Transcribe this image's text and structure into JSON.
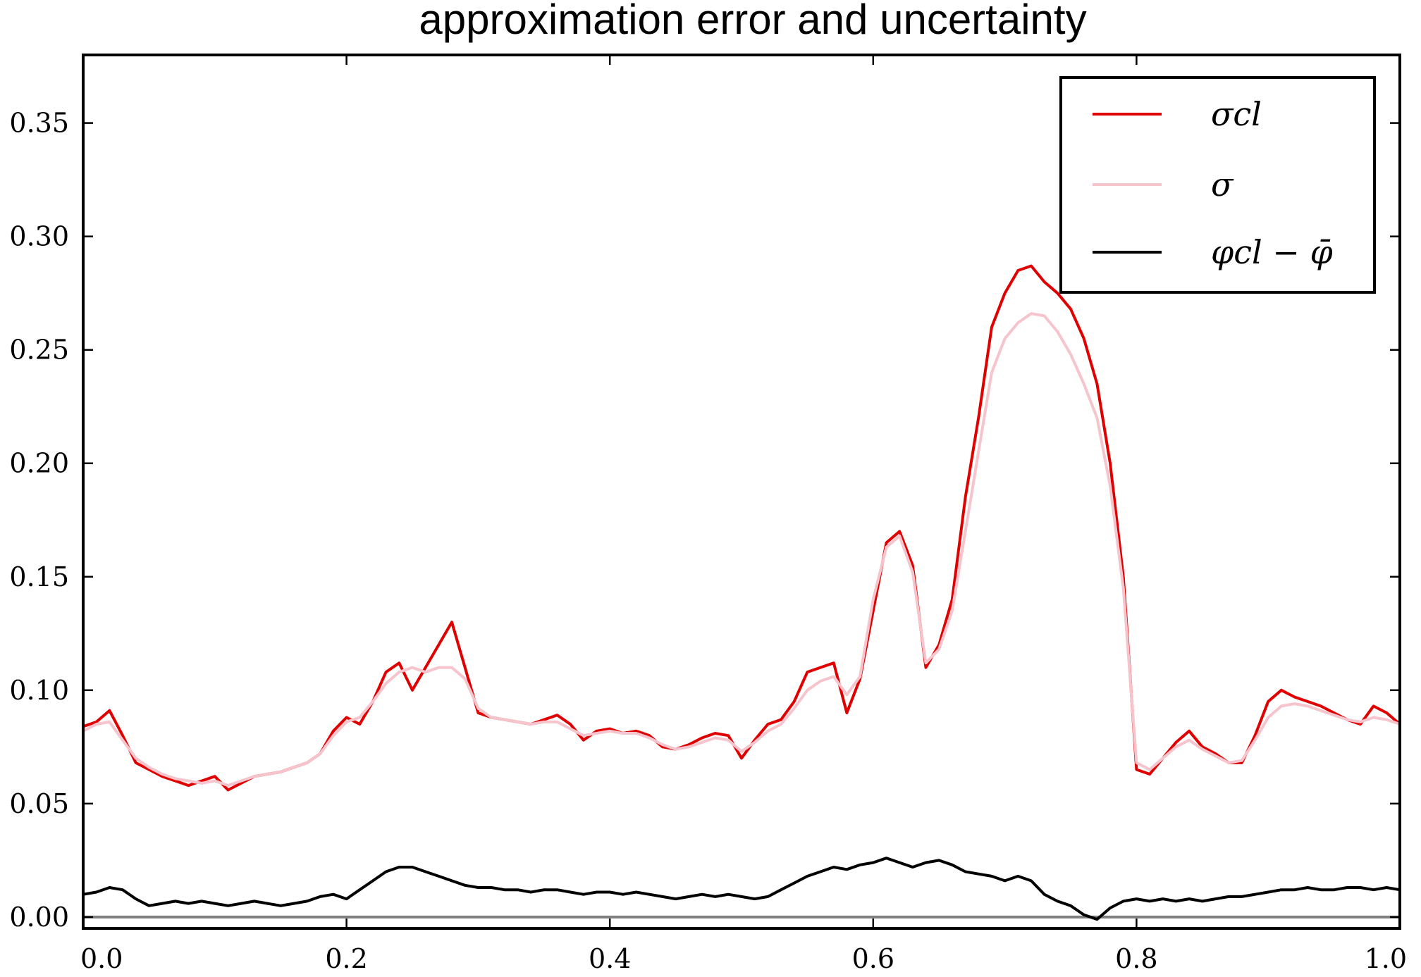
{
  "chart_data": {
    "type": "line",
    "title": "approximation error and uncertainty",
    "xlabel": "",
    "ylabel": "",
    "xlim": [
      0.0,
      1.0
    ],
    "ylim": [
      -0.005,
      0.38
    ],
    "x_ticks": [
      0.0,
      0.2,
      0.4,
      0.6,
      0.8,
      1.0
    ],
    "x_tick_labels": [
      "0.0",
      "0.2",
      "0.4",
      "0.6",
      "0.8",
      "1.0"
    ],
    "y_ticks": [
      0.0,
      0.05,
      0.1,
      0.15,
      0.2,
      0.25,
      0.3,
      0.35
    ],
    "y_tick_labels": [
      "0.00",
      "0.05",
      "0.10",
      "0.15",
      "0.20",
      "0.25",
      "0.30",
      "0.35"
    ],
    "grid": false,
    "legend_position": "top-right",
    "reference_line": {
      "y": 0.0,
      "color": "#808080"
    },
    "series": [
      {
        "name": "σcl",
        "color": "#e00000",
        "x": [
          0.0,
          0.01,
          0.02,
          0.03,
          0.04,
          0.05,
          0.06,
          0.07,
          0.08,
          0.09,
          0.1,
          0.11,
          0.12,
          0.13,
          0.14,
          0.15,
          0.16,
          0.17,
          0.18,
          0.19,
          0.2,
          0.21,
          0.22,
          0.23,
          0.24,
          0.25,
          0.26,
          0.27,
          0.28,
          0.29,
          0.3,
          0.31,
          0.32,
          0.33,
          0.34,
          0.35,
          0.36,
          0.37,
          0.38,
          0.39,
          0.4,
          0.41,
          0.42,
          0.43,
          0.44,
          0.45,
          0.46,
          0.47,
          0.48,
          0.49,
          0.5,
          0.51,
          0.52,
          0.53,
          0.54,
          0.55,
          0.56,
          0.57,
          0.58,
          0.59,
          0.6,
          0.61,
          0.62,
          0.63,
          0.64,
          0.65,
          0.66,
          0.67,
          0.68,
          0.69,
          0.7,
          0.71,
          0.72,
          0.73,
          0.74,
          0.75,
          0.76,
          0.77,
          0.78,
          0.79,
          0.8,
          0.81,
          0.82,
          0.83,
          0.84,
          0.85,
          0.86,
          0.87,
          0.88,
          0.89,
          0.9,
          0.91,
          0.92,
          0.93,
          0.94,
          0.95,
          0.96,
          0.97,
          0.98,
          0.99,
          1.0
        ],
        "y": [
          0.084,
          0.086,
          0.091,
          0.08,
          0.068,
          0.065,
          0.062,
          0.06,
          0.058,
          0.06,
          0.062,
          0.056,
          0.059,
          0.062,
          0.063,
          0.064,
          0.066,
          0.068,
          0.072,
          0.082,
          0.088,
          0.085,
          0.095,
          0.108,
          0.112,
          0.1,
          0.11,
          0.12,
          0.13,
          0.11,
          0.09,
          0.088,
          0.087,
          0.086,
          0.085,
          0.087,
          0.089,
          0.085,
          0.078,
          0.082,
          0.083,
          0.081,
          0.082,
          0.08,
          0.075,
          0.074,
          0.076,
          0.079,
          0.081,
          0.08,
          0.07,
          0.078,
          0.085,
          0.087,
          0.095,
          0.108,
          0.11,
          0.112,
          0.09,
          0.105,
          0.135,
          0.165,
          0.17,
          0.155,
          0.11,
          0.12,
          0.14,
          0.185,
          0.22,
          0.26,
          0.275,
          0.285,
          0.287,
          0.28,
          0.275,
          0.268,
          0.255,
          0.235,
          0.2,
          0.15,
          0.065,
          0.063,
          0.07,
          0.077,
          0.082,
          0.075,
          0.072,
          0.068,
          0.068,
          0.08,
          0.095,
          0.1,
          0.097,
          0.095,
          0.093,
          0.09,
          0.087,
          0.085,
          0.093,
          0.09,
          0.085
        ]
      },
      {
        "name": "σ",
        "color": "#f6c4cc",
        "x": [
          0.0,
          0.01,
          0.02,
          0.03,
          0.04,
          0.05,
          0.06,
          0.07,
          0.08,
          0.09,
          0.1,
          0.11,
          0.12,
          0.13,
          0.14,
          0.15,
          0.16,
          0.17,
          0.18,
          0.19,
          0.2,
          0.21,
          0.22,
          0.23,
          0.24,
          0.25,
          0.26,
          0.27,
          0.28,
          0.29,
          0.3,
          0.31,
          0.32,
          0.33,
          0.34,
          0.35,
          0.36,
          0.37,
          0.38,
          0.39,
          0.4,
          0.41,
          0.42,
          0.43,
          0.44,
          0.45,
          0.46,
          0.47,
          0.48,
          0.49,
          0.5,
          0.51,
          0.52,
          0.53,
          0.54,
          0.55,
          0.56,
          0.57,
          0.58,
          0.59,
          0.6,
          0.61,
          0.62,
          0.63,
          0.64,
          0.65,
          0.66,
          0.67,
          0.68,
          0.69,
          0.7,
          0.71,
          0.72,
          0.73,
          0.74,
          0.75,
          0.76,
          0.77,
          0.78,
          0.79,
          0.8,
          0.81,
          0.82,
          0.83,
          0.84,
          0.85,
          0.86,
          0.87,
          0.88,
          0.89,
          0.9,
          0.91,
          0.92,
          0.93,
          0.94,
          0.95,
          0.96,
          0.97,
          0.98,
          0.99,
          1.0
        ],
        "y": [
          0.082,
          0.085,
          0.086,
          0.078,
          0.07,
          0.066,
          0.063,
          0.061,
          0.06,
          0.059,
          0.06,
          0.058,
          0.06,
          0.062,
          0.063,
          0.064,
          0.066,
          0.068,
          0.072,
          0.08,
          0.086,
          0.088,
          0.095,
          0.103,
          0.108,
          0.11,
          0.108,
          0.11,
          0.11,
          0.105,
          0.092,
          0.088,
          0.087,
          0.086,
          0.085,
          0.086,
          0.086,
          0.083,
          0.08,
          0.081,
          0.082,
          0.081,
          0.081,
          0.079,
          0.076,
          0.074,
          0.075,
          0.077,
          0.079,
          0.078,
          0.073,
          0.077,
          0.082,
          0.085,
          0.092,
          0.1,
          0.104,
          0.106,
          0.098,
          0.106,
          0.14,
          0.163,
          0.168,
          0.152,
          0.112,
          0.118,
          0.135,
          0.17,
          0.205,
          0.24,
          0.255,
          0.262,
          0.266,
          0.265,
          0.258,
          0.248,
          0.235,
          0.22,
          0.19,
          0.145,
          0.068,
          0.065,
          0.07,
          0.075,
          0.078,
          0.074,
          0.071,
          0.068,
          0.069,
          0.078,
          0.088,
          0.093,
          0.094,
          0.093,
          0.091,
          0.089,
          0.087,
          0.086,
          0.088,
          0.087,
          0.085
        ]
      },
      {
        "name": "φcl − φ̄",
        "color": "#000000",
        "x": [
          0.0,
          0.01,
          0.02,
          0.03,
          0.04,
          0.05,
          0.06,
          0.07,
          0.08,
          0.09,
          0.1,
          0.11,
          0.12,
          0.13,
          0.14,
          0.15,
          0.16,
          0.17,
          0.18,
          0.19,
          0.2,
          0.21,
          0.22,
          0.23,
          0.24,
          0.25,
          0.26,
          0.27,
          0.28,
          0.29,
          0.3,
          0.31,
          0.32,
          0.33,
          0.34,
          0.35,
          0.36,
          0.37,
          0.38,
          0.39,
          0.4,
          0.41,
          0.42,
          0.43,
          0.44,
          0.45,
          0.46,
          0.47,
          0.48,
          0.49,
          0.5,
          0.51,
          0.52,
          0.53,
          0.54,
          0.55,
          0.56,
          0.57,
          0.58,
          0.59,
          0.6,
          0.61,
          0.62,
          0.63,
          0.64,
          0.65,
          0.66,
          0.67,
          0.68,
          0.69,
          0.7,
          0.71,
          0.72,
          0.73,
          0.74,
          0.75,
          0.76,
          0.77,
          0.78,
          0.79,
          0.8,
          0.81,
          0.82,
          0.83,
          0.84,
          0.85,
          0.86,
          0.87,
          0.88,
          0.89,
          0.9,
          0.91,
          0.92,
          0.93,
          0.94,
          0.95,
          0.96,
          0.97,
          0.98,
          0.99,
          1.0
        ],
        "y": [
          0.01,
          0.011,
          0.013,
          0.012,
          0.008,
          0.005,
          0.006,
          0.007,
          0.006,
          0.007,
          0.006,
          0.005,
          0.006,
          0.007,
          0.006,
          0.005,
          0.006,
          0.007,
          0.009,
          0.01,
          0.008,
          0.012,
          0.016,
          0.02,
          0.022,
          0.022,
          0.02,
          0.018,
          0.016,
          0.014,
          0.013,
          0.013,
          0.012,
          0.012,
          0.011,
          0.012,
          0.012,
          0.011,
          0.01,
          0.011,
          0.011,
          0.01,
          0.011,
          0.01,
          0.009,
          0.008,
          0.009,
          0.01,
          0.009,
          0.01,
          0.009,
          0.008,
          0.009,
          0.012,
          0.015,
          0.018,
          0.02,
          0.022,
          0.021,
          0.023,
          0.024,
          0.026,
          0.024,
          0.022,
          0.024,
          0.025,
          0.023,
          0.02,
          0.019,
          0.018,
          0.016,
          0.018,
          0.016,
          0.01,
          0.007,
          0.005,
          0.001,
          -0.001,
          0.004,
          0.007,
          0.008,
          0.007,
          0.008,
          0.007,
          0.008,
          0.007,
          0.008,
          0.009,
          0.009,
          0.01,
          0.011,
          0.012,
          0.012,
          0.013,
          0.012,
          0.012,
          0.013,
          0.013,
          0.012,
          0.013,
          0.012
        ]
      }
    ]
  }
}
